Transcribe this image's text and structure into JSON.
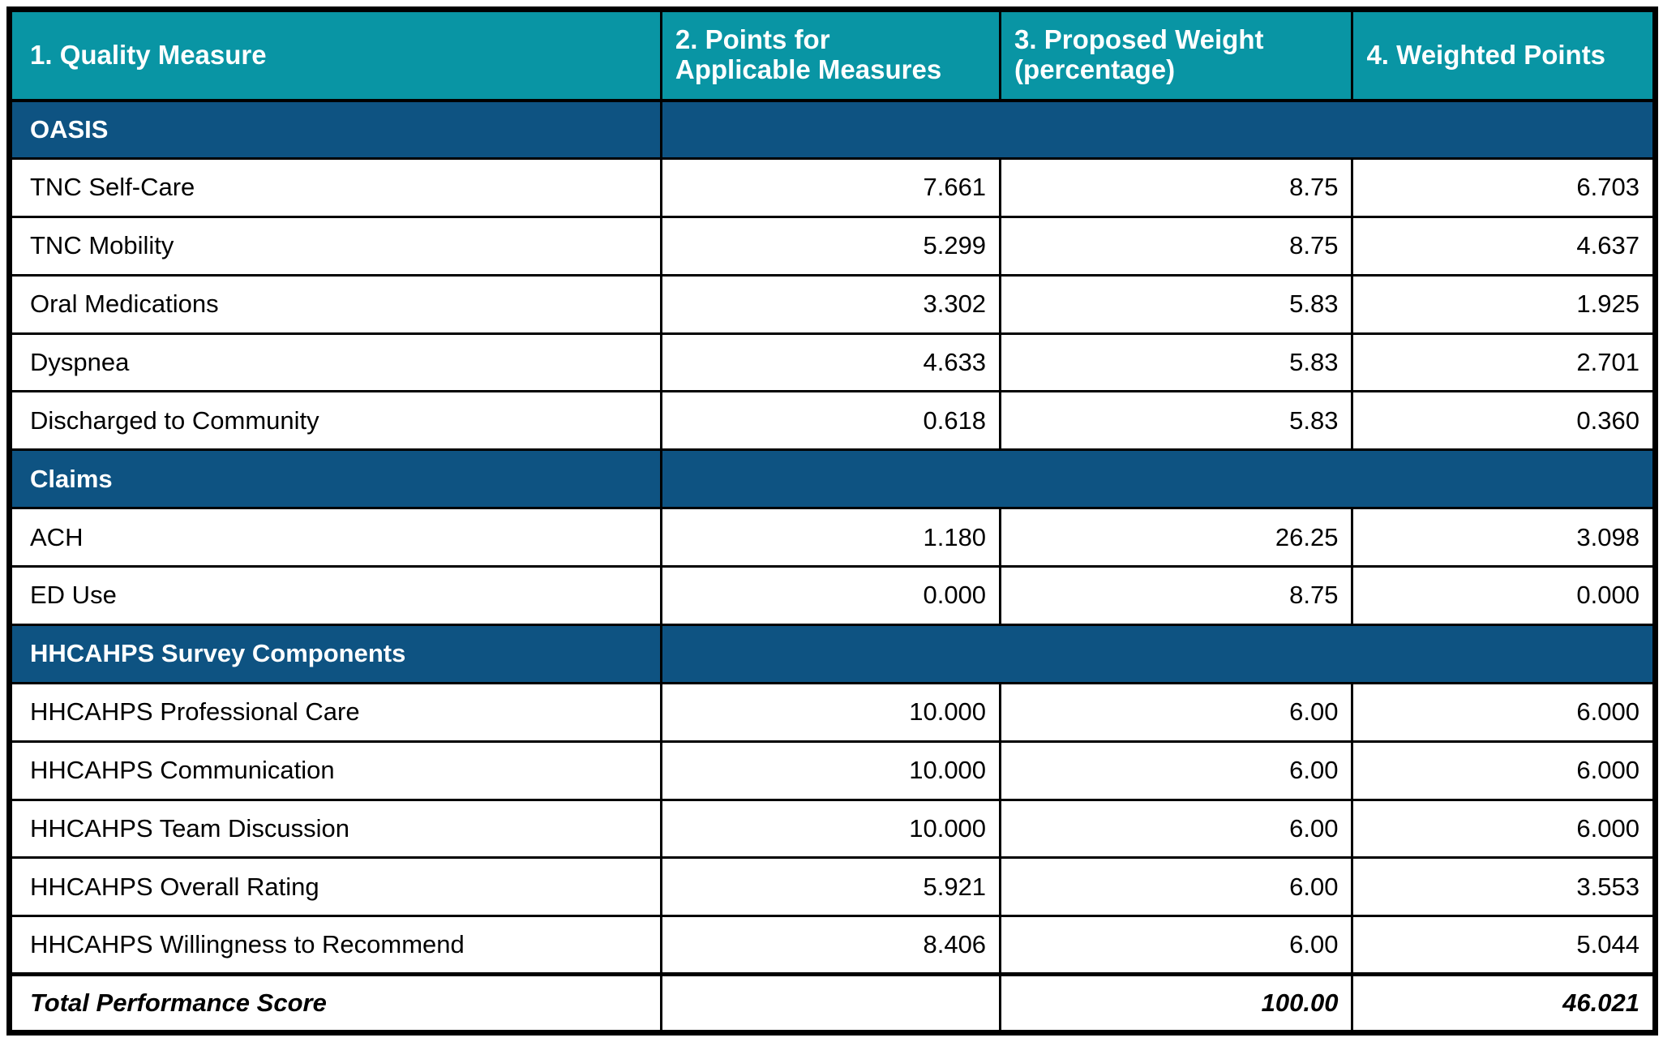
{
  "colors": {
    "header_bg": "#0995A4",
    "section_bg": "#0E5382",
    "header_text": "#FFFFFF",
    "body_text": "#000000",
    "border": "#000000",
    "row_bg": "#FFFFFF"
  },
  "table": {
    "columns": [
      {
        "label": "1. Quality Measure"
      },
      {
        "label": "2. Points for\nApplicable Measures"
      },
      {
        "label": "3. Proposed Weight\n(percentage)"
      },
      {
        "label": "4. Weighted Points"
      }
    ],
    "sections": [
      {
        "title": "OASIS",
        "rows": [
          {
            "measure": "TNC Self-Care",
            "points": "7.661",
            "weight": "8.75",
            "weighted": "6.703"
          },
          {
            "measure": "TNC Mobility",
            "points": "5.299",
            "weight": "8.75",
            "weighted": "4.637"
          },
          {
            "measure": "Oral Medications",
            "points": "3.302",
            "weight": "5.83",
            "weighted": "1.925"
          },
          {
            "measure": "Dyspnea",
            "points": "4.633",
            "weight": "5.83",
            "weighted": "2.701"
          },
          {
            "measure": "Discharged to Community",
            "points": "0.618",
            "weight": "5.83",
            "weighted": "0.360"
          }
        ]
      },
      {
        "title": "Claims",
        "rows": [
          {
            "measure": "ACH",
            "points": "1.180",
            "weight": "26.25",
            "weighted": "3.098"
          },
          {
            "measure": "ED Use",
            "points": "0.000",
            "weight": "8.75",
            "weighted": "0.000"
          }
        ]
      },
      {
        "title": "HHCAHPS Survey Components",
        "rows": [
          {
            "measure": "HHCAHPS Professional Care",
            "points": "10.000",
            "weight": "6.00",
            "weighted": "6.000"
          },
          {
            "measure": "HHCAHPS Communication",
            "points": "10.000",
            "weight": "6.00",
            "weighted": "6.000"
          },
          {
            "measure": "HHCAHPS Team Discussion",
            "points": "10.000",
            "weight": "6.00",
            "weighted": "6.000"
          },
          {
            "measure": "HHCAHPS Overall Rating",
            "points": "5.921",
            "weight": "6.00",
            "weighted": "3.553"
          },
          {
            "measure": "HHCAHPS Willingness to Recommend",
            "points": "8.406",
            "weight": "6.00",
            "weighted": "5.044"
          }
        ]
      }
    ],
    "total": {
      "label": "Total Performance Score",
      "points": "",
      "weight": "100.00",
      "weighted": "46.021"
    }
  }
}
